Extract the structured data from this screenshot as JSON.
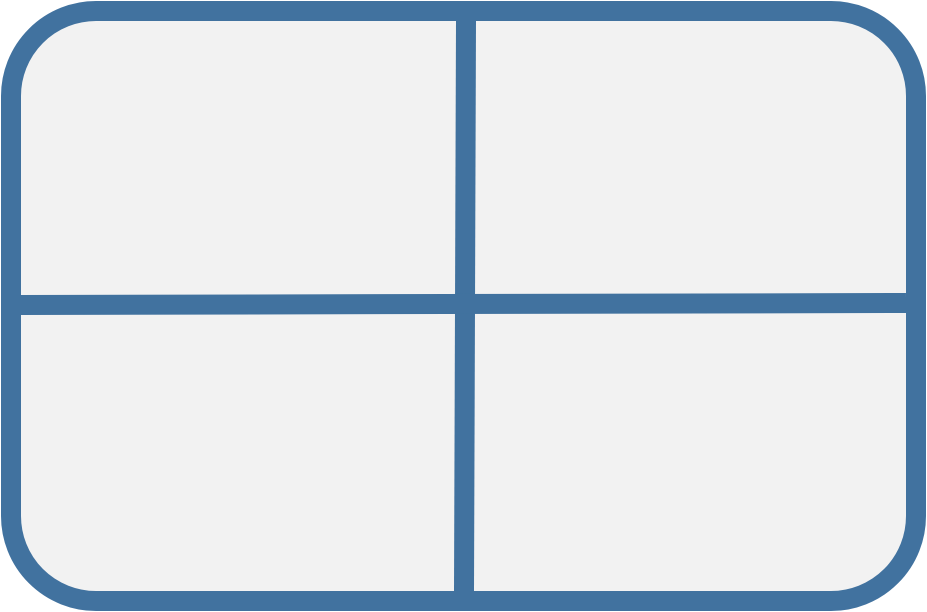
{
  "diagram": {
    "shape": "rounded-rectangle-grid",
    "rows": 2,
    "columns": 2,
    "colors": {
      "stroke": "#41729f",
      "fill": "#f2f2f2"
    }
  }
}
